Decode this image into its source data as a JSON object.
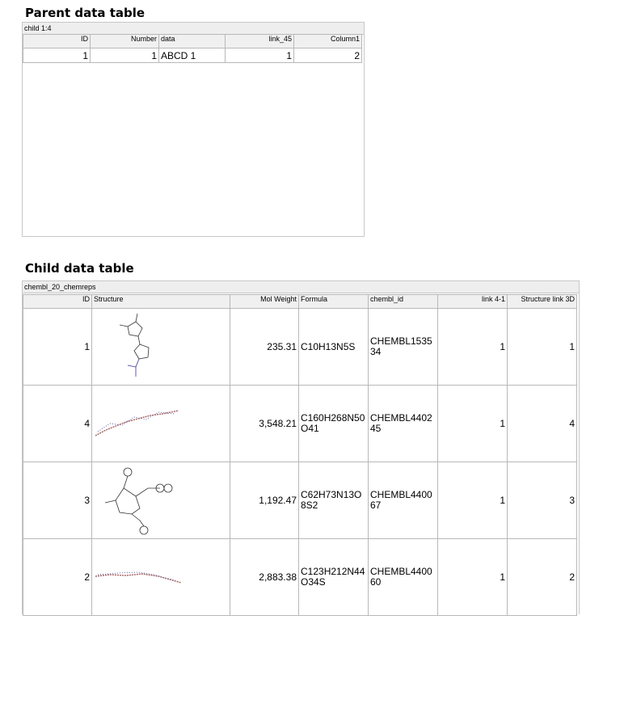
{
  "parent": {
    "title": "Parent data table",
    "caption": "child 1:4",
    "columns": [
      "ID",
      "Number",
      "data",
      "link_45",
      "Column1"
    ],
    "rows": [
      [
        "1",
        "1",
        "ABCD 1",
        "1",
        "2"
      ]
    ]
  },
  "child": {
    "title": "Child data table",
    "caption": "chembl_20_chemreps",
    "columns": [
      "ID",
      "Structure",
      "Mol Weight",
      "Formula",
      "chembl_id",
      "link 4-1",
      "Structure link 3D"
    ],
    "rows": [
      {
        "id": "1",
        "mw": "235.31",
        "formula": "C10H13N5S",
        "chembl": "CHEMBL153534",
        "link": "1",
        "link3d": "1"
      },
      {
        "id": "4",
        "mw": "3,548.21",
        "formula": "C160H268N50O41",
        "chembl": "CHEMBL440245",
        "link": "1",
        "link3d": "4"
      },
      {
        "id": "3",
        "mw": "1,192.47",
        "formula": "C62H73N13O8S2",
        "chembl": "CHEMBL440067",
        "link": "1",
        "link3d": "3"
      },
      {
        "id": "2",
        "mw": "2,883.38",
        "formula": "C123H212N44O34S",
        "chembl": "CHEMBL440060",
        "link": "1",
        "link3d": "2"
      }
    ]
  }
}
